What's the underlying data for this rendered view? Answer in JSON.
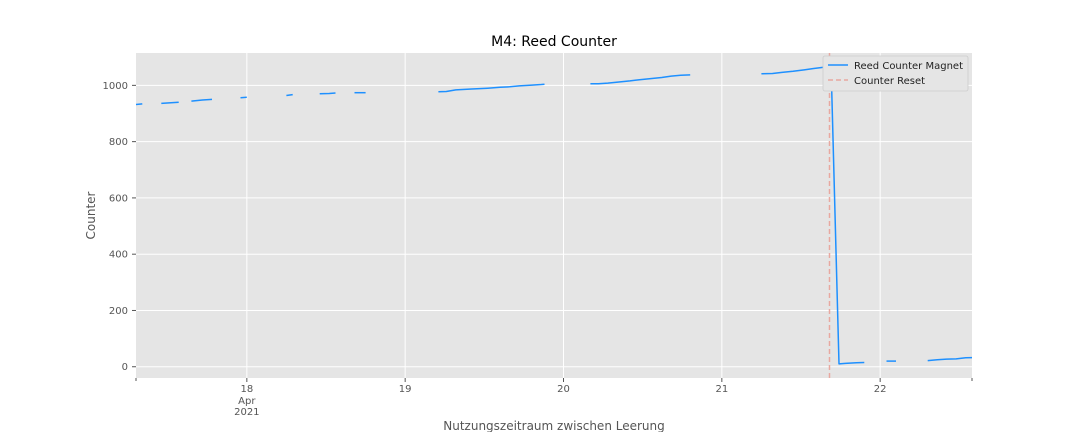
{
  "chart_data": {
    "type": "line",
    "title": "M4: Reed Counter",
    "xlabel": "Nutzungszeitraum zwischen Leerung",
    "ylabel": "Counter",
    "xlim": [
      17.3,
      22.58
    ],
    "ylim": [
      -40,
      1115
    ],
    "yticks": [
      0,
      200,
      400,
      600,
      800,
      1000
    ],
    "xticks": [
      {
        "value": 18,
        "label": "18",
        "sub1": "Apr",
        "sub2": "2021"
      },
      {
        "value": 19,
        "label": "19"
      },
      {
        "value": 20,
        "label": "20"
      },
      {
        "value": 21,
        "label": "21"
      },
      {
        "value": 22,
        "label": "22"
      }
    ],
    "grid": true,
    "legend_position": "top-right",
    "colors": {
      "background": "#e5e5e5",
      "grid": "#ffffff",
      "series": "#1e90ff",
      "reset": "#e8a8a0"
    },
    "series": [
      {
        "name": "Reed Counter Magnet",
        "segments": [
          [
            [
              17.3,
              932
            ],
            [
              17.34,
              934
            ]
          ],
          [
            [
              17.46,
              936
            ],
            [
              17.57,
              940
            ]
          ],
          [
            [
              17.65,
              944
            ],
            [
              17.72,
              948
            ],
            [
              17.78,
              950
            ]
          ],
          [
            [
              17.96,
              956
            ],
            [
              18.0,
              958
            ]
          ],
          [
            [
              18.25,
              964
            ],
            [
              18.29,
              967
            ]
          ],
          [
            [
              18.46,
              970
            ],
            [
              18.52,
              971
            ],
            [
              18.56,
              973
            ]
          ],
          [
            [
              18.68,
              974
            ],
            [
              18.75,
              974
            ]
          ],
          [
            [
              19.21,
              977
            ],
            [
              19.26,
              978
            ],
            [
              19.32,
              984
            ],
            [
              19.42,
              987
            ],
            [
              19.52,
              990
            ],
            [
              19.6,
              993
            ],
            [
              19.66,
              995
            ],
            [
              19.72,
              998
            ],
            [
              19.8,
              1001
            ],
            [
              19.86,
              1003
            ],
            [
              19.88,
              1004
            ]
          ],
          [
            [
              20.17,
              1006
            ],
            [
              20.22,
              1006
            ],
            [
              20.28,
              1008
            ],
            [
              20.35,
              1012
            ],
            [
              20.42,
              1016
            ],
            [
              20.48,
              1020
            ],
            [
              20.55,
              1024
            ],
            [
              20.62,
              1028
            ],
            [
              20.68,
              1033
            ],
            [
              20.74,
              1036
            ],
            [
              20.8,
              1037
            ]
          ],
          [
            [
              21.25,
              1041
            ],
            [
              21.32,
              1042
            ],
            [
              21.38,
              1046
            ],
            [
              21.45,
              1050
            ],
            [
              21.52,
              1055
            ],
            [
              21.58,
              1060
            ],
            [
              21.65,
              1065
            ],
            [
              21.69,
              1066
            ],
            [
              21.74,
              10
            ],
            [
              21.78,
              12
            ],
            [
              21.85,
              14
            ],
            [
              21.9,
              15
            ]
          ],
          [
            [
              22.04,
              20
            ],
            [
              22.1,
              20
            ]
          ],
          [
            [
              22.3,
              22
            ],
            [
              22.36,
              25
            ],
            [
              22.42,
              27
            ],
            [
              22.48,
              28
            ],
            [
              22.54,
              32
            ],
            [
              22.6,
              33
            ],
            [
              22.66,
              36
            ],
            [
              22.72,
              37
            ],
            [
              22.78,
              36
            ]
          ]
        ]
      },
      {
        "name": "Counter Reset",
        "x": 21.68,
        "style": "dashed"
      }
    ]
  }
}
